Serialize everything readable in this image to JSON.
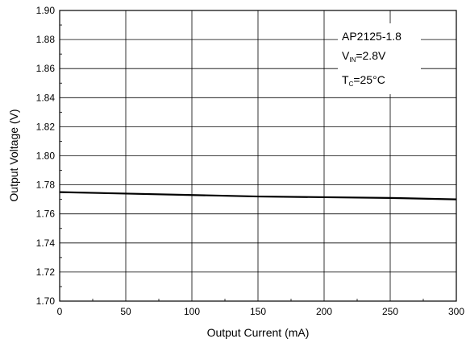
{
  "chart_data": {
    "type": "line",
    "xlabel": "Output Current (mA)",
    "ylabel": "Output Voltage (V)",
    "xlim": [
      0,
      300
    ],
    "ylim": [
      1.7,
      1.9
    ],
    "x_ticks": [
      "0",
      "50",
      "100",
      "150",
      "200",
      "250",
      "300"
    ],
    "y_ticks": [
      "1.70",
      "1.72",
      "1.74",
      "1.76",
      "1.78",
      "1.80",
      "1.82",
      "1.84",
      "1.86",
      "1.88",
      "1.90"
    ],
    "grid": true,
    "series": [
      {
        "x": [
          0,
          50,
          100,
          150,
          200,
          250,
          300
        ],
        "values": [
          1.775,
          1.774,
          1.773,
          1.772,
          1.7715,
          1.771,
          1.77
        ]
      }
    ],
    "annotations": {
      "line1": "AP2125-1.8",
      "line2_main": "V",
      "line2_sub": "IN",
      "line2_rest": "=2.8V",
      "line3_main": "T",
      "line3_sub": "C",
      "line3_rest": "=25°C"
    },
    "colors": {
      "line": "#000000",
      "grid": "#000000"
    }
  }
}
